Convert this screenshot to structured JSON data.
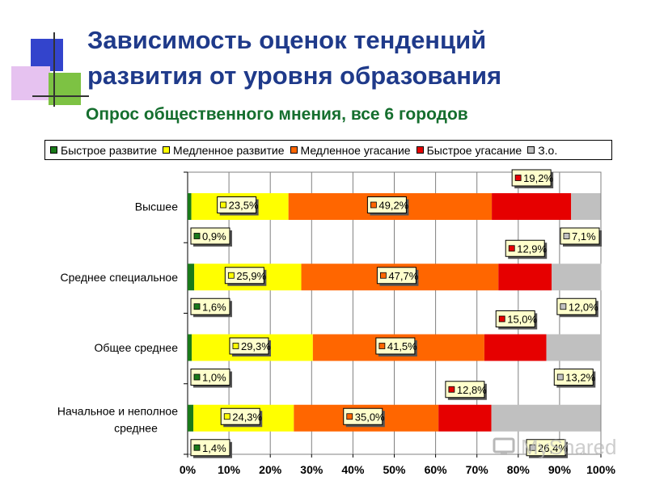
{
  "header": {
    "title_line1": "Зависимость оценок тенденций",
    "title_line2": "развития от уровня образования",
    "subtitle": "Опрос общественного мнения, все 6 городов"
  },
  "watermark": "MyShared",
  "chart_data": {
    "type": "bar",
    "orientation": "horizontal",
    "stacked": true,
    "categories": [
      "Высшее",
      "Среднее специальное",
      "Общее среднее",
      "Начальное и неполное среднее"
    ],
    "series": [
      {
        "name": "Быстрое развитие",
        "color": "#1a7a1a",
        "values": [
          0.9,
          1.6,
          1.0,
          1.4
        ],
        "labels": [
          "0,9%",
          "1,6%",
          "1,0%",
          "1,4%"
        ]
      },
      {
        "name": "Медленное развитие",
        "color": "#ffff00",
        "values": [
          23.5,
          25.9,
          29.3,
          24.3
        ],
        "labels": [
          "23,5%",
          "25,9%",
          "29,3%",
          "24,3%"
        ]
      },
      {
        "name": "Медленное угасание",
        "color": "#ff6600",
        "values": [
          49.2,
          47.7,
          41.5,
          35.0
        ],
        "labels": [
          "49,2%",
          "47,7%",
          "41,5%",
          "35,0%"
        ]
      },
      {
        "name": "Быстрое угасание",
        "color": "#e60000",
        "values": [
          19.2,
          12.9,
          15.0,
          12.8
        ],
        "labels": [
          "19,2%",
          "12,9%",
          "15,0%",
          "12,8%"
        ]
      },
      {
        "name": "З.о.",
        "color": "#c0c0c0",
        "values": [
          7.1,
          12.0,
          13.2,
          26.4
        ],
        "labels": [
          "7,1%",
          "12,0%",
          "13,2%",
          "26,4%"
        ]
      }
    ],
    "xlim": [
      0,
      100
    ],
    "xticks": [
      "0%",
      "10%",
      "20%",
      "30%",
      "40%",
      "50%",
      "60%",
      "70%",
      "80%",
      "90%",
      "100%"
    ],
    "grid": true,
    "legend_position": "top"
  }
}
